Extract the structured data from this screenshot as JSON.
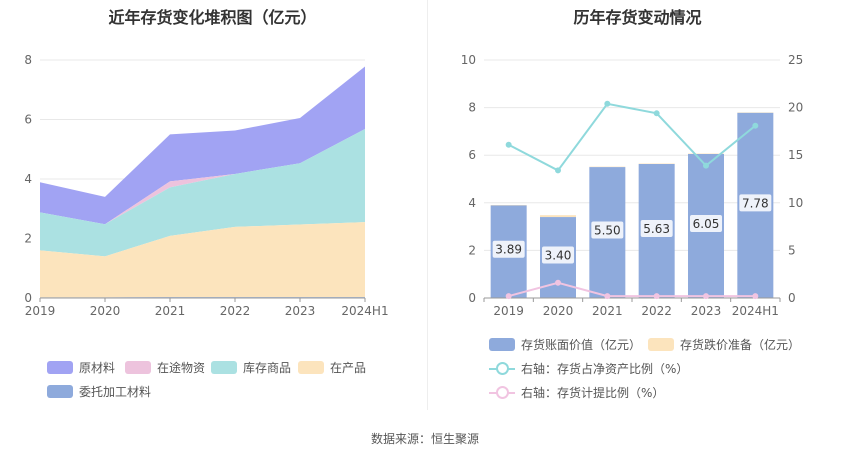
{
  "left": {
    "title": "近年存货变化堆积图（亿元）",
    "legend": [
      "原材料",
      "在途物资",
      "库存商品",
      "在产品",
      "委托加工材料"
    ]
  },
  "right": {
    "title": "历年存货变动情况",
    "legend": [
      "存货账面价值（亿元）",
      "存货跌价准备（亿元）",
      "右轴：存货占净资产比例（%）",
      "右轴：存货计提比例（%）"
    ]
  },
  "source": "数据来源：恒生聚源",
  "colors": {
    "raw": "#a1a3f3",
    "transit": "#edc3dd",
    "goods": "#abe1e2",
    "wip": "#fce4bd",
    "consigned": "#8eaadc",
    "bar": "#8eaadc",
    "reserve": "#fce4bd",
    "ratio1": "#8fd9dc",
    "ratio2": "#f1c4e1"
  },
  "chart_data": [
    {
      "type": "area",
      "stacked": true,
      "title": "近年存货变化堆积图（亿元）",
      "categories": [
        "2019",
        "2020",
        "2021",
        "2022",
        "2023",
        "2024H1"
      ],
      "ylim": [
        0,
        8
      ],
      "yticks": [
        0,
        2,
        4,
        6,
        8
      ],
      "series": [
        {
          "name": "委托加工材料",
          "values": [
            0.02,
            0.02,
            0.03,
            0.03,
            0.03,
            0.03
          ]
        },
        {
          "name": "在产品",
          "values": [
            1.58,
            1.38,
            2.06,
            2.36,
            2.44,
            2.52
          ]
        },
        {
          "name": "库存商品",
          "values": [
            1.28,
            1.08,
            1.63,
            1.78,
            2.06,
            3.13
          ]
        },
        {
          "name": "在途物资",
          "values": [
            0.0,
            0.0,
            0.2,
            0.0,
            0.0,
            0.0
          ]
        },
        {
          "name": "原材料",
          "values": [
            1.01,
            0.92,
            1.58,
            1.46,
            1.52,
            2.1
          ]
        }
      ]
    },
    {
      "type": "bar",
      "title": "历年存货变动情况",
      "categories": [
        "2019",
        "2020",
        "2021",
        "2022",
        "2023",
        "2024H1"
      ],
      "ylim": [
        0,
        10
      ],
      "yticks": [
        0,
        2,
        4,
        6,
        8,
        10
      ],
      "y2lim": [
        0,
        25
      ],
      "y2ticks": [
        0,
        5,
        10,
        15,
        20,
        25
      ],
      "series": [
        {
          "name": "存货账面价值（亿元）",
          "type": "bar",
          "values": [
            3.89,
            3.4,
            5.5,
            5.63,
            6.05,
            7.78
          ],
          "labels": [
            "3.89",
            "3.40",
            "5.50",
            "5.63",
            "6.05",
            "7.78"
          ]
        },
        {
          "name": "存货跌价准备（亿元）",
          "type": "bar",
          "values": [
            0.02,
            0.08,
            0.02,
            0.02,
            0.02,
            0.02
          ]
        },
        {
          "name": "右轴：存货占净资产比例（%）",
          "type": "line",
          "axis": "right",
          "values": [
            16.1,
            13.4,
            20.4,
            19.4,
            13.9,
            18.1
          ]
        },
        {
          "name": "右轴：存货计提比例（%）",
          "type": "line",
          "axis": "right",
          "values": [
            0.2,
            1.6,
            0.2,
            0.2,
            0.2,
            0.2
          ]
        }
      ]
    }
  ]
}
